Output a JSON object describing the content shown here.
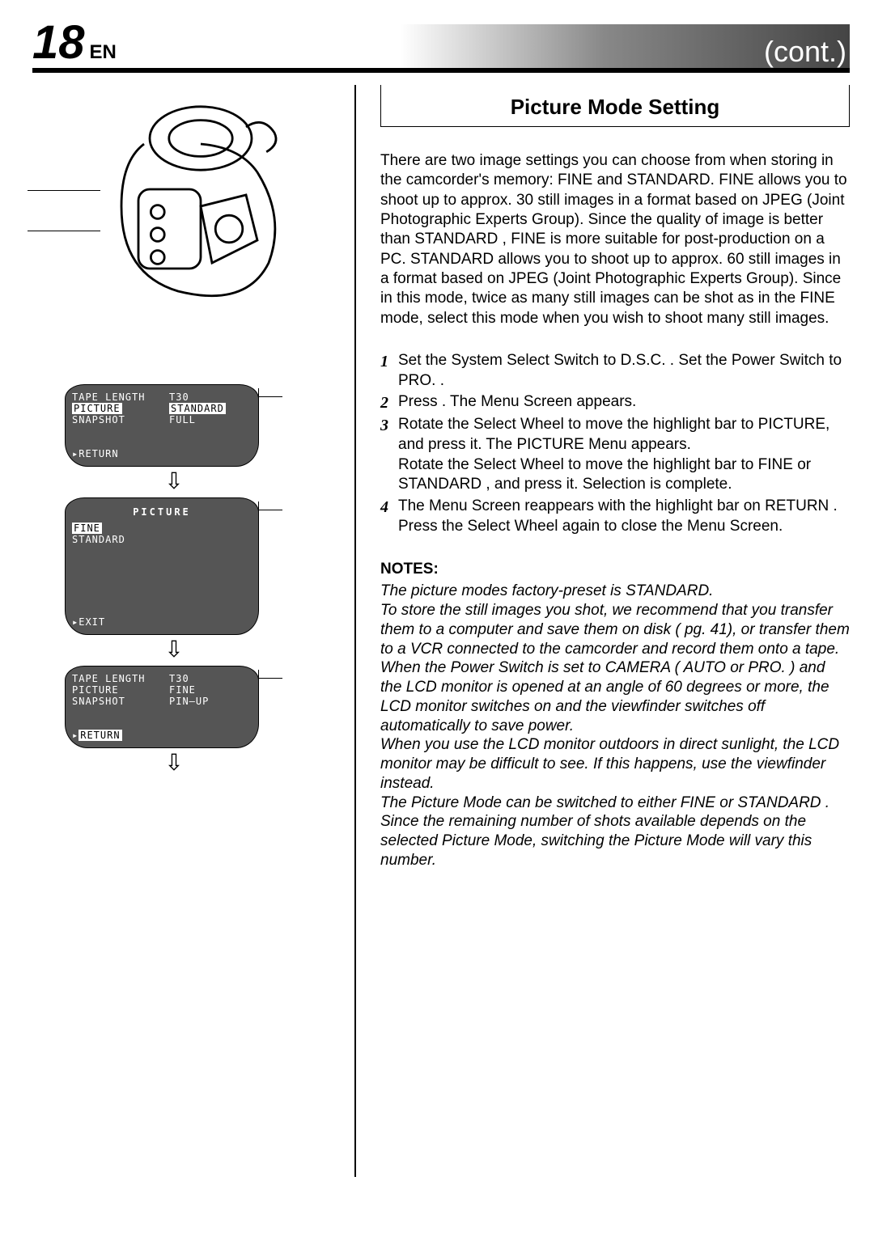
{
  "header": {
    "page_number": "18",
    "lang": "EN",
    "cont": "(cont.)"
  },
  "lcd1": {
    "rows": [
      {
        "k": "TAPE LENGTH",
        "v": "T30",
        "k_inv": false,
        "v_inv": false
      },
      {
        "k": "PICTURE",
        "v": "STANDARD",
        "k_inv": true,
        "v_inv": true
      },
      {
        "k": "SNAPSHOT",
        "v": "FULL",
        "k_inv": false,
        "v_inv": false
      }
    ],
    "return": "RETURN"
  },
  "lcd2": {
    "title": "PICTURE",
    "rows": [
      {
        "k": "FINE",
        "inv": true
      },
      {
        "k": "STANDARD",
        "inv": false
      }
    ],
    "exit": "EXIT"
  },
  "lcd3": {
    "rows": [
      {
        "k": "TAPE LENGTH",
        "v": "T30"
      },
      {
        "k": "PICTURE",
        "v": "FINE"
      },
      {
        "k": "SNAPSHOT",
        "v": "PIN–UP"
      }
    ],
    "return": "RETURN",
    "return_inv": true
  },
  "section": {
    "title": "Picture Mode Setting",
    "intro": "There are two image settings you can choose from when storing in the camcorder's memory: FINE and STANDARD. FINE allows you to shoot up to approx. 30 still images in a format based on JPEG (Joint Photographic Experts Group). Since the quality of image is better than STANDARD ,  FINE  is more suitable for post-production on a PC. STANDARD allows you to shoot up to approx. 60 still images in a format based on JPEG (Joint Photographic Experts Group). Since in this mode, twice as many still images can be shot as in the FINE  mode, select this mode when you wish to shoot many still images.",
    "steps": [
      "Set the System Select Switch to D.S.C. . Set the Power Switch to  PRO. .",
      "Press          . The Menu Screen appears.",
      "Rotate the Select Wheel to move the highlight bar to PICTURE, and press it. The PICTURE Menu appears.\nRotate the Select Wheel to move the highlight bar to  FINE  or  STANDARD , and press it. Selection is complete.",
      "The Menu Screen reappears with the highlight bar on  RETURN . Press the Select Wheel again to close the Menu Screen."
    ],
    "notes_head": "NOTES:",
    "notes": "The picture modes factory-preset is STANDARD.\nTo store the still images you shot, we recommend that you transfer them to a computer and save them on disk (      pg. 41), or transfer them to a VCR connected to the camcorder and record them onto a tape.\nWhen the Power Switch is set to CAMERA  (  AUTO   or   PRO. ) and the LCD monitor is opened at an angle of 60 degrees or more, the LCD monitor switches on and the viewfinder switches off automatically to save power.\nWhen you use the LCD monitor outdoors in direct sunlight, the LCD monitor may be difficult to see. If this happens, use the viewfinder instead.\nThe Picture Mode can be switched to either FINE or  STANDARD . Since the remaining number of shots available depends on the selected Picture Mode, switching the Picture Mode will vary this number."
  }
}
